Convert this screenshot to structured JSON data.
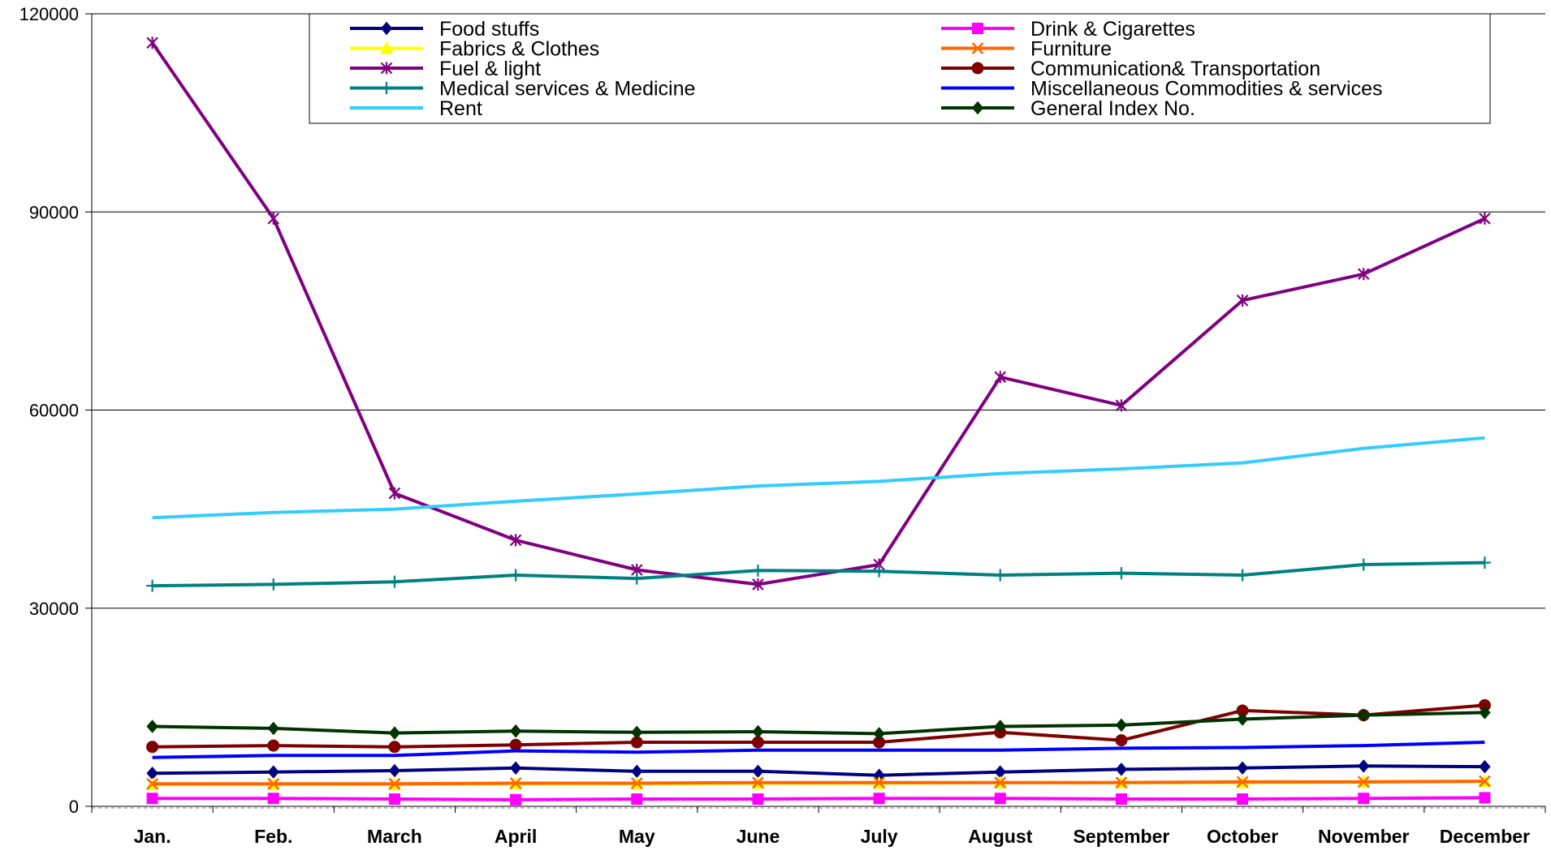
{
  "chart_data": {
    "type": "line",
    "title": "",
    "xlabel": "",
    "ylabel": "",
    "ylim": [
      0,
      120000
    ],
    "yticks": [
      0,
      30000,
      60000,
      90000,
      120000
    ],
    "ytick_labels": [
      "0",
      "30000",
      "60000",
      "90000",
      "120000"
    ],
    "grid": "horizontal",
    "legend_position": "top",
    "categories": [
      "Jan.",
      "Feb.",
      "March",
      "April",
      "May",
      "June",
      "July",
      "August",
      "September",
      "October",
      "November",
      "December"
    ],
    "series": [
      {
        "name": "Food stuffs",
        "color": "#000080",
        "marker": "diamond",
        "values": [
          5000,
          5200,
          5400,
          5800,
          5300,
          5300,
          4700,
          5200,
          5600,
          5800,
          6100,
          6000
        ]
      },
      {
        "name": "Drink &  Cigarettes",
        "color": "#FF00FF",
        "marker": "square",
        "values": [
          1200,
          1200,
          1100,
          1000,
          1100,
          1100,
          1200,
          1200,
          1100,
          1100,
          1200,
          1300
        ]
      },
      {
        "name": "Fabrics &  Clothes",
        "color": "#FFFF00",
        "marker": "triangle",
        "values": [
          3300,
          3300,
          3300,
          3400,
          3400,
          3500,
          3500,
          3600,
          3600,
          3600,
          3700,
          3800
        ]
      },
      {
        "name": "Furniture",
        "color": "#FF6600",
        "marker": "x",
        "values": [
          3400,
          3400,
          3400,
          3500,
          3500,
          3600,
          3600,
          3600,
          3600,
          3700,
          3700,
          3800
        ]
      },
      {
        "name": "Fuel & light",
        "color": "#800080",
        "marker": "star",
        "values": [
          115600,
          89000,
          47400,
          40300,
          35800,
          33600,
          36600,
          65000,
          60700,
          76600,
          80600,
          89000
        ]
      },
      {
        "name": "Communication&  Transportation",
        "color": "#800000",
        "marker": "circle",
        "values": [
          9000,
          9200,
          9000,
          9300,
          9700,
          9700,
          9700,
          11200,
          10000,
          14500,
          13800,
          15300
        ]
      },
      {
        "name": "Medical services  & Medicine",
        "color": "#008080",
        "marker": "plus",
        "values": [
          33400,
          33600,
          34000,
          35000,
          34500,
          35700,
          35600,
          35000,
          35300,
          35000,
          36600,
          36900
        ]
      },
      {
        "name": "Miscellaneous Commodities &   services",
        "color": "#0000FF",
        "marker": "none",
        "values": [
          7400,
          7700,
          7700,
          8400,
          8200,
          8500,
          8500,
          8500,
          8800,
          8900,
          9200,
          9700
        ]
      },
      {
        "name": "Rent",
        "color": "#33CCFF",
        "marker": "none",
        "values": [
          43700,
          44500,
          45000,
          46200,
          47300,
          48500,
          49200,
          50400,
          51100,
          52000,
          54200,
          55800
        ]
      },
      {
        "name": "General  Index No.",
        "color": "#003300",
        "marker": "diamond",
        "values": [
          12100,
          11800,
          11100,
          11400,
          11200,
          11300,
          11000,
          12100,
          12300,
          13200,
          13800,
          14200
        ]
      }
    ]
  }
}
